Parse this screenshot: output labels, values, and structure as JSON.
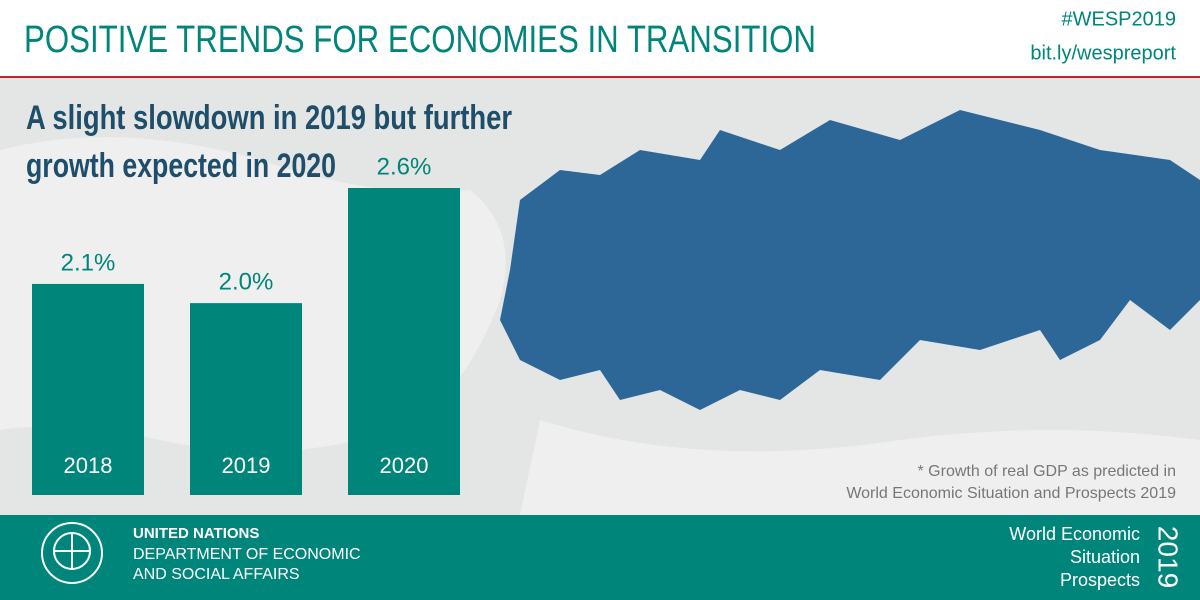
{
  "header": {
    "title": "POSITIVE TRENDS FOR ECONOMIES IN TRANSITION",
    "hashtag": "#WESP2019",
    "link": "bit.ly/wespreport"
  },
  "chart_data": {
    "type": "bar",
    "title": [
      "A slight slowdown in 2019 but further",
      "growth expected in 2020"
    ],
    "categories": [
      "2018",
      "2019",
      "2020"
    ],
    "values": [
      2.1,
      2.0,
      2.6
    ],
    "value_labels": [
      "2.1%",
      "2.0%",
      "2.6%"
    ],
    "color": "#00857a",
    "ylim": [
      1,
      2.6
    ],
    "note": [
      "* Growth of real GDP as predicted in",
      "World Economic Situation and Prospects 2019"
    ]
  },
  "footer": {
    "org": [
      "UNITED NATIONS",
      "DEPARTMENT OF ECONOMIC",
      "AND SOCIAL AFFAIRS"
    ],
    "report": [
      "World Economic",
      "Situation",
      "Prospects"
    ],
    "year": "2019"
  }
}
